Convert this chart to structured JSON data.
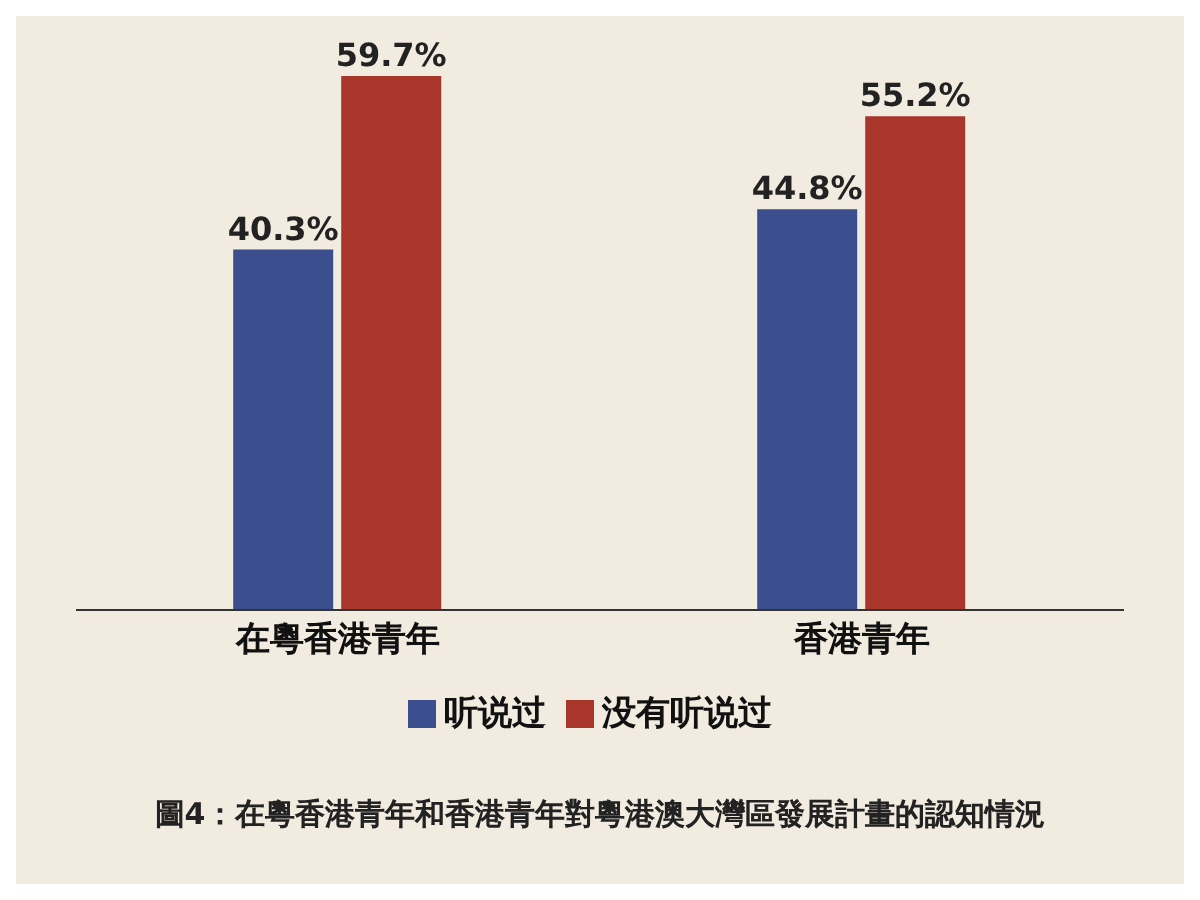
{
  "chart_data": {
    "type": "bar",
    "title": "圖4：在粵香港青年和香港青年對粵港澳大灣區發展計畫的認知情況",
    "categories": [
      "在粵香港青年",
      "香港青年"
    ],
    "series": [
      {
        "name": "听说过",
        "color": "#3b4f8e",
        "values": [
          40.3,
          44.8
        ],
        "value_labels": [
          "40.3%",
          "44.8%"
        ]
      },
      {
        "name": "没有听说过",
        "color": "#a9362b",
        "values": [
          59.7,
          55.2
        ],
        "value_labels": [
          "59.7%",
          "55.2%"
        ]
      }
    ],
    "legend": "bottom",
    "grid": false
  }
}
